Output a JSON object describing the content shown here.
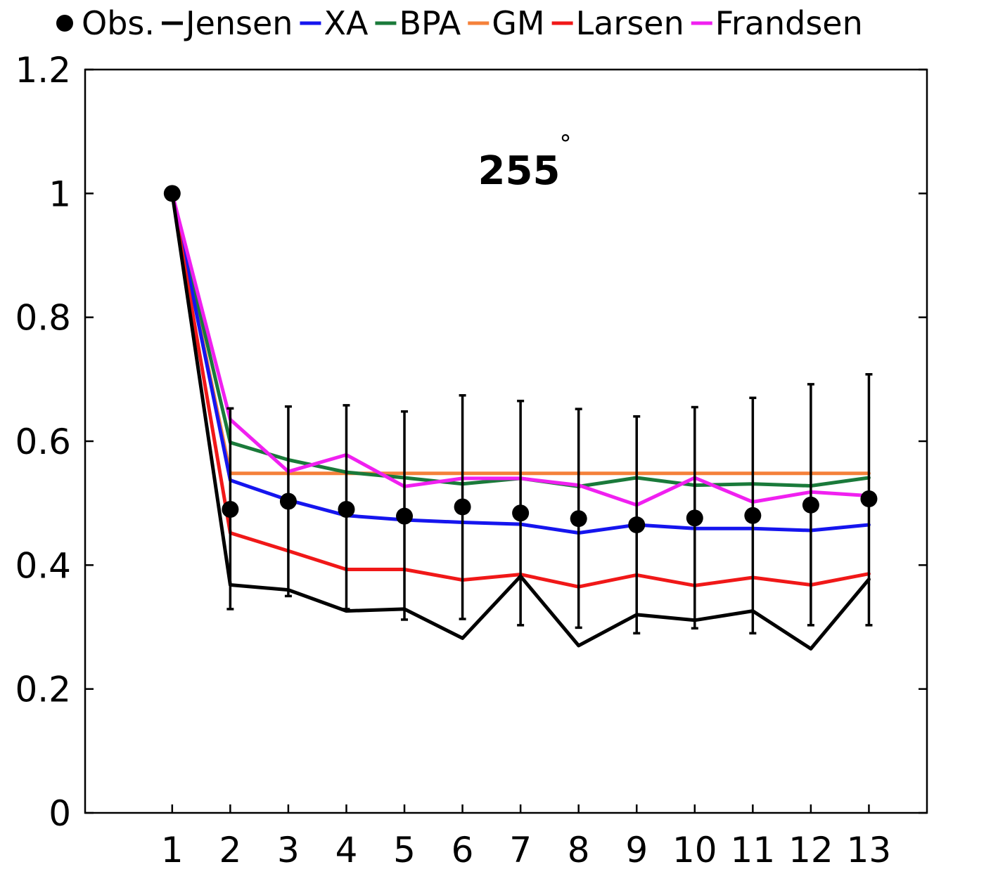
{
  "chart_data": {
    "type": "line",
    "title": "255",
    "title_superscript": "°",
    "xlabel": "",
    "ylabel": "",
    "x": [
      1,
      2,
      3,
      4,
      5,
      6,
      7,
      8,
      9,
      10,
      11,
      12,
      13
    ],
    "x_tick_labels": [
      "1",
      "2",
      "3",
      "4",
      "5",
      "6",
      "7",
      "8",
      "9",
      "10",
      "11",
      "12",
      "13"
    ],
    "xlim": [
      -0.5,
      14.0
    ],
    "ylim": [
      0,
      1.2
    ],
    "y_ticks": [
      0,
      0.2,
      0.4,
      0.6,
      0.8,
      1,
      1.2
    ],
    "y_tick_labels": [
      "0",
      "0.2",
      "0.4",
      "0.6",
      "0.8",
      "1",
      "1.2"
    ],
    "grid": false,
    "legend_position": "top",
    "legend": [
      {
        "name": "Obs.",
        "color": "#000000",
        "marker": "dot"
      },
      {
        "name": "Jensen",
        "color": "#000000",
        "marker": "line"
      },
      {
        "name": "XA",
        "color": "#1515ee",
        "marker": "line"
      },
      {
        "name": "BPA",
        "color": "#1a7a3a",
        "marker": "line"
      },
      {
        "name": "GM",
        "color": "#f5813a",
        "marker": "line"
      },
      {
        "name": "Larsen",
        "color": "#f01818",
        "marker": "line"
      },
      {
        "name": "Frandsen",
        "color": "#f020f0",
        "marker": "line"
      }
    ],
    "observations": {
      "name": "Obs.",
      "values": [
        1.0,
        0.49,
        0.503,
        0.49,
        0.479,
        0.494,
        0.484,
        0.475,
        0.465,
        0.476,
        0.48,
        0.497,
        0.507
      ],
      "error_low": [
        null,
        0.329,
        0.35,
        0.329,
        0.312,
        0.313,
        0.303,
        0.299,
        0.29,
        0.298,
        0.29,
        0.303,
        0.303
      ],
      "error_high": [
        null,
        0.653,
        0.656,
        0.658,
        0.648,
        0.674,
        0.665,
        0.652,
        0.64,
        0.655,
        0.67,
        0.692,
        0.708
      ],
      "color": "#000000"
    },
    "series": [
      {
        "name": "Jensen",
        "color": "#000000",
        "values": [
          1.0,
          0.368,
          0.36,
          0.326,
          0.329,
          0.282,
          0.382,
          0.27,
          0.32,
          0.311,
          0.326,
          0.265,
          0.377
        ]
      },
      {
        "name": "XA",
        "color": "#1515ee",
        "values": [
          1.0,
          0.537,
          0.505,
          0.48,
          0.473,
          0.469,
          0.466,
          0.452,
          0.465,
          0.459,
          0.459,
          0.456,
          0.465
        ]
      },
      {
        "name": "BPA",
        "color": "#1a7a3a",
        "values": [
          1.0,
          0.598,
          0.57,
          0.55,
          0.541,
          0.531,
          0.54,
          0.527,
          0.541,
          0.529,
          0.531,
          0.528,
          0.541
        ]
      },
      {
        "name": "GM",
        "color": "#f5813a",
        "values": [
          1.0,
          0.548,
          0.548,
          0.548,
          0.548,
          0.548,
          0.548,
          0.548,
          0.548,
          0.548,
          0.548,
          0.548,
          0.548
        ]
      },
      {
        "name": "Larsen",
        "color": "#f01818",
        "values": [
          1.0,
          0.452,
          0.423,
          0.393,
          0.393,
          0.376,
          0.385,
          0.365,
          0.384,
          0.367,
          0.38,
          0.368,
          0.386
        ]
      },
      {
        "name": "Frandsen",
        "color": "#f020f0",
        "values": [
          1.0,
          0.635,
          0.551,
          0.578,
          0.527,
          0.54,
          0.54,
          0.529,
          0.497,
          0.541,
          0.502,
          0.518,
          0.512
        ]
      }
    ]
  }
}
